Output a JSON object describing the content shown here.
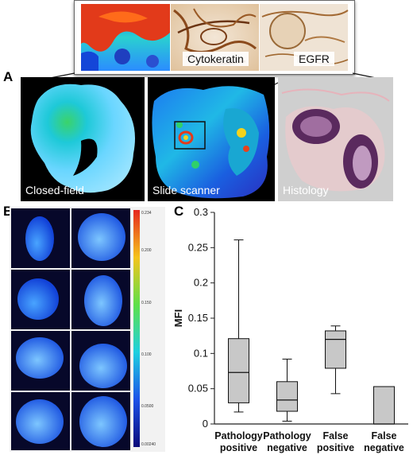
{
  "panels": {
    "a": {
      "letter": "A",
      "labels": {
        "closed_field": "Closed-field",
        "slide_scanner": "Slide scanner",
        "histology": "Histology"
      },
      "insets": {
        "cytokeratin": "Cytokeratin",
        "egfr": "EGFR"
      }
    },
    "b": {
      "letter": "B",
      "colorbar_ticks": [
        "0.234",
        "0.200",
        "0.150",
        "0.100",
        "0.0500",
        "0.00240"
      ]
    },
    "c": {
      "letter": "C"
    }
  },
  "chart_data": {
    "type": "box",
    "ylabel": "MFI",
    "ylim": [
      0,
      0.3
    ],
    "yticks": [
      "0",
      "0.05",
      "0.1",
      "0.15",
      "0.2",
      "0.25",
      "0.3"
    ],
    "ytick_values": [
      0,
      0.05,
      0.1,
      0.15,
      0.2,
      0.25,
      0.3
    ],
    "categories": [
      [
        "Pathology",
        "positive"
      ],
      [
        "Pathology",
        "negative"
      ],
      [
        "False",
        "positive"
      ],
      [
        "False",
        "negative"
      ]
    ],
    "boxes": [
      {
        "min": 0.017,
        "q1": 0.03,
        "median": 0.073,
        "q3": 0.121,
        "max": 0.261
      },
      {
        "min": 0.004,
        "q1": 0.018,
        "median": 0.034,
        "q3": 0.06,
        "max": 0.092
      },
      {
        "min": 0.043,
        "q1": 0.079,
        "median": 0.12,
        "q3": 0.132,
        "max": 0.139
      },
      {
        "min": 0.0,
        "q1": 0.0,
        "median": 0.0,
        "q3": 0.053,
        "max": 0.053
      }
    ],
    "box_color": "#c8c8c8"
  }
}
